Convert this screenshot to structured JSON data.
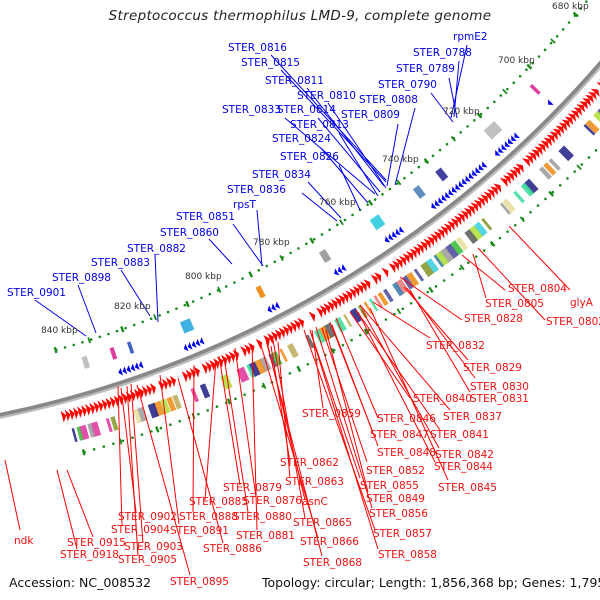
{
  "title": "Streptococcus thermophilus LMD-9, complete genome",
  "footer": {
    "accession": "Accession: NC_008532",
    "summary": "Topology: circular; Length: 1,856,368 bp; Genes: 1,795"
  },
  "genome": {
    "length_bp": 1856368,
    "topology": "circular",
    "genes": 1795
  },
  "colors": {
    "forward_feature": "#0000ee",
    "reverse_feature": "#ff0000",
    "backbone": "#888888",
    "tick": "#1a8a1a",
    "forward_label": "#0000e6",
    "reverse_label": "#f01010"
  },
  "tick_labels": [
    "680 kbp",
    "700 kbp",
    "720 kbp",
    "740 kbp",
    "760 kbp",
    "780 kbp",
    "800 kbp",
    "820 kbp",
    "840 kbp"
  ],
  "forward_labels": [
    "STER_0816",
    "STER_0815",
    "STER_0811",
    "STER_0810",
    "STER_0833",
    "STER_0814",
    "STER_0813",
    "STER_0824",
    "STER_0826",
    "STER_0834",
    "STER_0836",
    "rpsT",
    "STER_0851",
    "STER_0860",
    "STER_0882",
    "STER_0883",
    "STER_0898",
    "STER_0901",
    "rpmE2",
    "STER_0788",
    "STER_0789",
    "STER_0790",
    "STER_0808",
    "STER_0809"
  ],
  "reverse_labels": [
    "STER_0804",
    "glyA",
    "STER_0805",
    "STER_0802",
    "STER_0828",
    "STER_0832",
    "STER_0829",
    "STER_0830",
    "STER_0840",
    "STER_0831",
    "STER_0837",
    "STER_0859",
    "STER_0846",
    "STER_0841",
    "STER_0847",
    "STER_0848",
    "STER_0842",
    "STER_0862",
    "STER_0852",
    "STER_0844",
    "STER_0863",
    "STER_0855",
    "STER_0845",
    "STER_0879",
    "STER_0849",
    "STER_0885",
    "STER_0876",
    "asnC",
    "STER_0902",
    "STER_0888",
    "STER_0880",
    "STER_0856",
    "STER_0865",
    "STER_0904",
    "STER_0891",
    "STER_0881",
    "ndk",
    "STER_0915",
    "STER_0903",
    "STER_0886",
    "STER_0866",
    "STER_0857",
    "STER_0918",
    "STER_0905",
    "STER_0868",
    "STER_0858",
    "STER_0895"
  ]
}
